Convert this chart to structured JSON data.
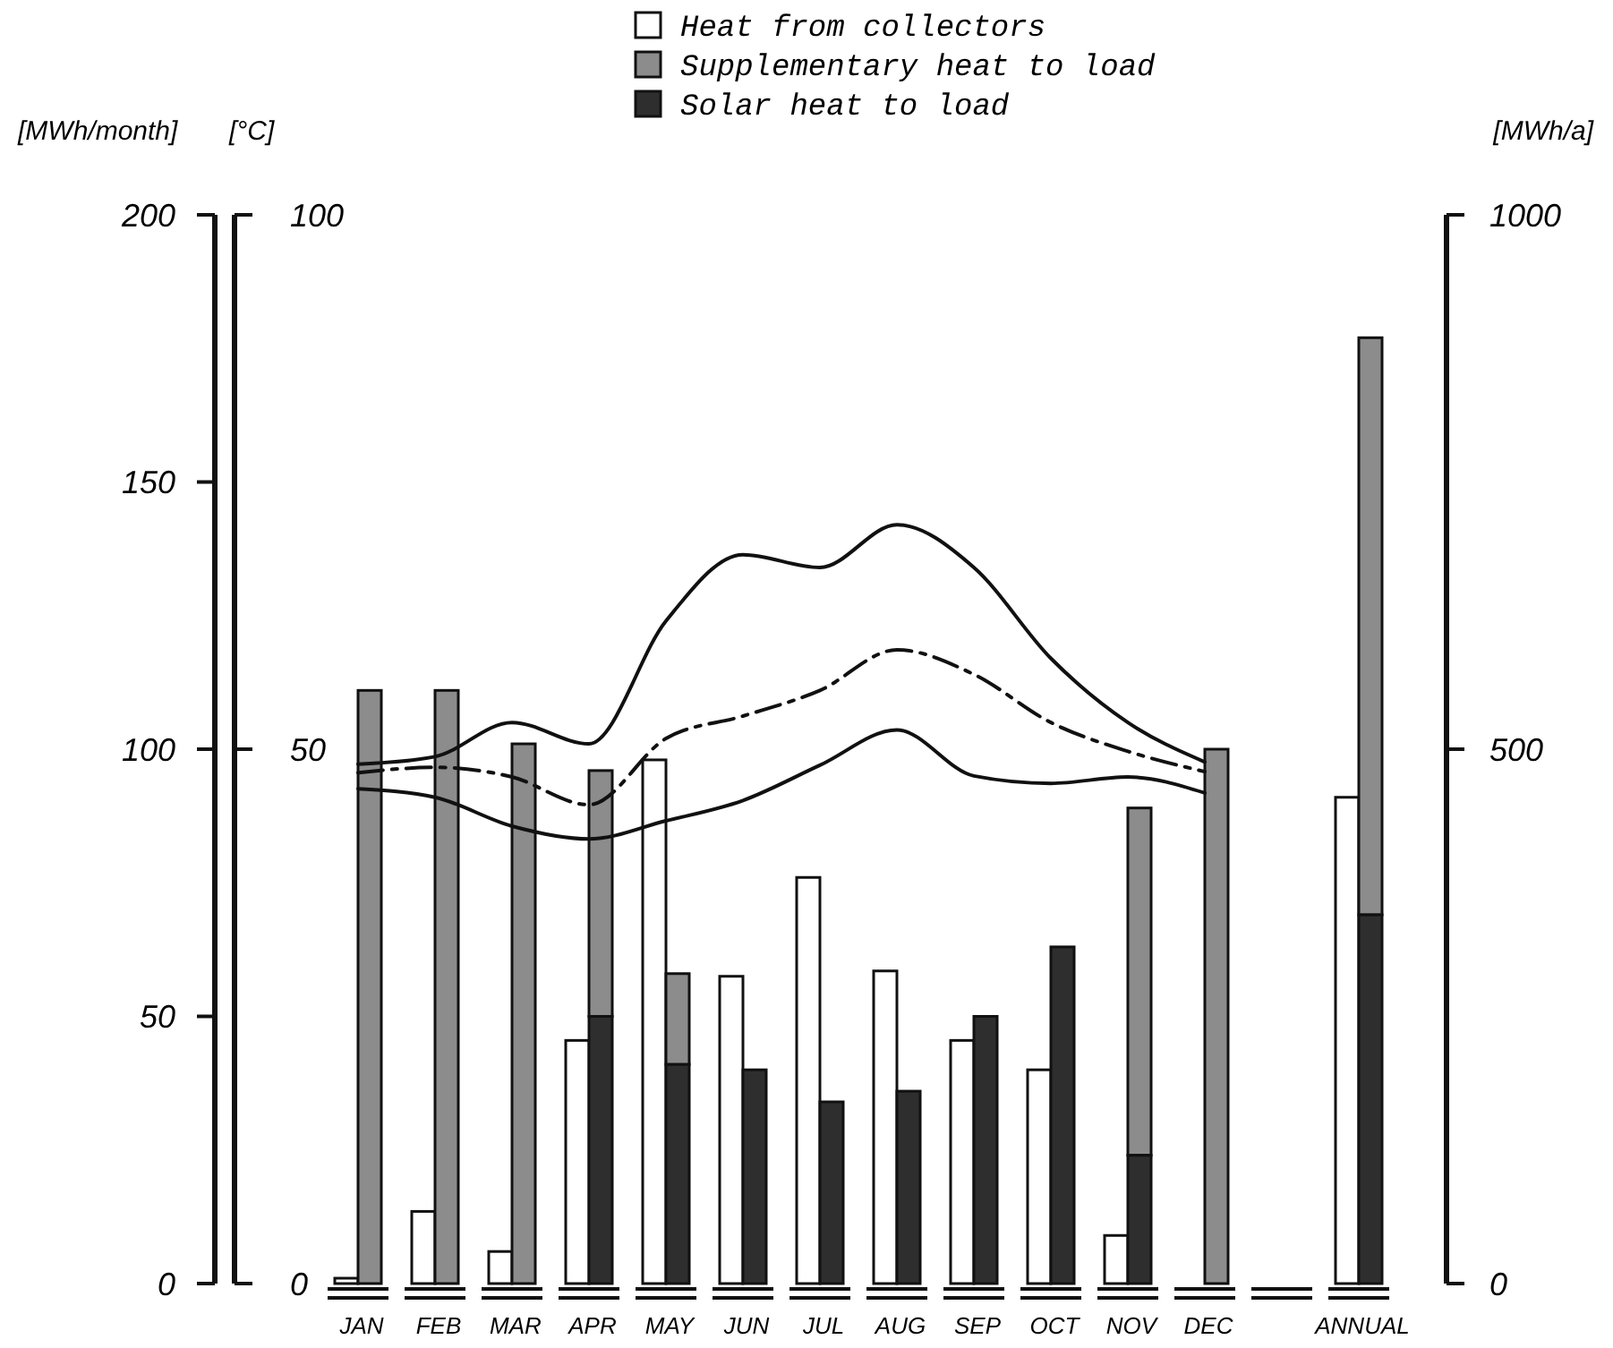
{
  "chart_data": {
    "type": "bar",
    "categories": [
      "JAN",
      "FEB",
      "MAR",
      "APR",
      "MAY",
      "JUN",
      "JUL",
      "AUG",
      "SEP",
      "OCT",
      "NOV",
      "DEC",
      null,
      "ANNUAL"
    ],
    "ylabel": "[MWh/month]",
    "y2label": "[°C]",
    "y3label": "[MWh/a]",
    "ylim": [
      0,
      200
    ],
    "yticks": [
      0,
      50,
      100,
      150,
      200
    ],
    "y2lim": [
      0,
      100
    ],
    "y2ticks": [
      0,
      50,
      100
    ],
    "y3lim": [
      0,
      1000
    ],
    "y3ticks": [
      0,
      500,
      1000
    ],
    "legend": "top",
    "marker": "none",
    "series": [
      {
        "name": "Heat from collectors",
        "color": "#ffffff",
        "values": [
          1,
          13.5,
          6,
          45.5,
          98,
          57.5,
          76,
          58.5,
          45.5,
          40,
          9,
          null,
          null,
          null
        ]
      },
      {
        "name": "Supplementary heat to load",
        "color": "#8c8c8c",
        "values": [
          111,
          111,
          101,
          46,
          17,
          null,
          null,
          null,
          null,
          null,
          65,
          100,
          null,
          null
        ],
        "base": [
          0,
          0,
          0,
          50,
          41,
          null,
          null,
          null,
          null,
          null,
          24,
          0,
          null,
          null
        ]
      },
      {
        "name": "Solar heat to load",
        "color": "#2e2e2e",
        "values": [
          null,
          null,
          null,
          50,
          41,
          40,
          34,
          36,
          50,
          63,
          24,
          null,
          null,
          null
        ]
      },
      {
        "color": "#ffffff",
        "axis": "y3",
        "values": [
          null,
          null,
          null,
          null,
          null,
          null,
          null,
          null,
          null,
          null,
          null,
          null,
          null,
          455
        ]
      },
      {
        "color": "#8c8c8c",
        "axis": "y3",
        "values": [
          null,
          null,
          null,
          null,
          null,
          null,
          null,
          null,
          null,
          null,
          null,
          null,
          null,
          540
        ],
        "base": [
          null,
          null,
          null,
          null,
          null,
          null,
          null,
          null,
          null,
          null,
          null,
          null,
          null,
          345
        ]
      },
      {
        "color": "#2e2e2e",
        "axis": "y3",
        "values": [
          null,
          null,
          null,
          null,
          null,
          null,
          null,
          null,
          null,
          null,
          null,
          null,
          null,
          345
        ]
      },
      {
        "type": "line",
        "axis": "y2",
        "color": "#111111",
        "line_style": "solid",
        "values": [
          48.6,
          49.3,
          52.5,
          50.5,
          62,
          68.2,
          67,
          71,
          67,
          58.5,
          52.5,
          48.8,
          null,
          null
        ]
      },
      {
        "type": "line",
        "axis": "y2",
        "color": "#111111",
        "line_style": "dashed",
        "values": [
          47.8,
          48.3,
          47.4,
          44.8,
          51,
          53.1,
          55.5,
          59.3,
          57,
          52.5,
          49.8,
          47.9,
          null,
          null
        ]
      },
      {
        "type": "line",
        "axis": "y2",
        "color": "#111111",
        "line_style": "solid",
        "values": [
          46.3,
          45.5,
          42.8,
          41.6,
          43.3,
          45.2,
          48.5,
          51.8,
          47.5,
          46.8,
          47.4,
          45.9,
          null,
          null
        ]
      }
    ]
  }
}
